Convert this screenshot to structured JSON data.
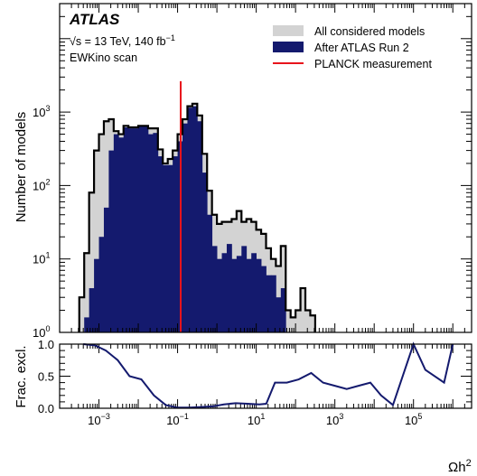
{
  "chart_data": [
    {
      "type": "bar",
      "style": "histogram",
      "ylabel": "Number of models",
      "yscale": "log",
      "xscale": "log",
      "xlim": [
        0.0001,
        3000000
      ],
      "ylim": [
        1,
        30000
      ],
      "yticks": [
        {
          "v": 1,
          "base": "10",
          "exp": "0"
        },
        {
          "v": 10,
          "base": "10",
          "exp": "1"
        },
        {
          "v": 100,
          "base": "10",
          "exp": "2"
        },
        {
          "v": 1000,
          "base": "10",
          "exp": "3"
        }
      ],
      "texts": {
        "experiment": "ATLAS",
        "energy_prefix": "√s = 13 TeV, 140 fb",
        "energy_exp": "−1",
        "scan": "EWKino scan"
      },
      "legend_position": "top-right",
      "series": [
        {
          "name": "All considered models",
          "kind": "fill",
          "color": "#d3d3d3",
          "values": [
            3,
            12,
            80,
            300,
            500,
            750,
            800,
            550,
            500,
            650,
            620,
            620,
            650,
            650,
            600,
            600,
            310,
            200,
            230,
            300,
            500,
            800,
            1200,
            1300,
            900,
            270,
            85,
            40,
            30,
            32,
            32,
            35,
            45,
            32,
            35,
            32,
            25,
            22,
            14,
            10,
            8,
            15,
            2,
            1.6,
            2,
            4,
            2,
            1.7
          ]
        },
        {
          "name": "After ATLAS Run 2",
          "kind": "fill",
          "color": "#141a6e",
          "values": [
            0,
            1.6,
            4,
            10,
            20,
            50,
            300,
            500,
            450,
            620,
            600,
            600,
            650,
            640,
            500,
            520,
            250,
            190,
            190,
            250,
            400,
            700,
            1150,
            1200,
            750,
            150,
            40,
            15,
            10,
            12,
            16,
            10,
            11,
            15,
            10,
            12,
            10,
            8,
            6,
            6,
            3,
            4,
            1,
            1,
            0,
            0,
            0,
            0
          ]
        },
        {
          "name": "",
          "kind": "outline",
          "color": "#000000",
          "values": [
            3,
            12,
            80,
            300,
            500,
            750,
            800,
            550,
            500,
            650,
            620,
            620,
            650,
            650,
            600,
            600,
            310,
            200,
            230,
            300,
            500,
            800,
            1200,
            1300,
            900,
            270,
            85,
            40,
            30,
            32,
            32,
            35,
            45,
            32,
            35,
            32,
            25,
            22,
            14,
            10,
            8,
            15,
            2,
            1.6,
            2,
            4,
            2,
            1.7
          ]
        }
      ],
      "bins": {
        "log10_start": -3.5,
        "log10_step": 0.125,
        "count": 48
      },
      "reference_line": {
        "name": "PLANCK measurement",
        "x": 0.12,
        "color": "#e8141c"
      }
    },
    {
      "type": "line",
      "ylabel": "Frac. excl.",
      "xlabel_base": "Ωh",
      "xlabel_exp": "2",
      "xscale": "log",
      "ylim": [
        0,
        1
      ],
      "yticks": [
        "0.0",
        "0.5",
        "1.0"
      ],
      "xticks": [
        {
          "v": 0.001,
          "base": "10",
          "exp": "−3"
        },
        {
          "v": 0.1,
          "base": "10",
          "exp": "−1"
        },
        {
          "v": 10,
          "base": "10",
          "exp": "1"
        },
        {
          "v": 1000,
          "base": "10",
          "exp": "3"
        },
        {
          "v": 100000,
          "base": "10",
          "exp": "5"
        }
      ],
      "series": [
        {
          "name": "",
          "color": "#141a6e",
          "x": [
            0.0004,
            0.0008,
            0.0015,
            0.003,
            0.006,
            0.012,
            0.025,
            0.05,
            0.1,
            0.2,
            0.4,
            0.8,
            1.5,
            3,
            6,
            12,
            18,
            30,
            60,
            120,
            250,
            500,
            1000,
            2000,
            4000,
            8000,
            15000,
            30000,
            100000,
            200000,
            600000,
            1000000
          ],
          "y": [
            1.0,
            0.98,
            0.9,
            0.75,
            0.5,
            0.45,
            0.2,
            0.05,
            0.01,
            0.01,
            0.02,
            0.03,
            0.06,
            0.08,
            0.07,
            0.06,
            0.07,
            0.4,
            0.4,
            0.45,
            0.55,
            0.4,
            0.35,
            0.3,
            0.35,
            0.4,
            0.2,
            0.05,
            1.0,
            0.6,
            0.4,
            1.0
          ]
        }
      ]
    }
  ]
}
